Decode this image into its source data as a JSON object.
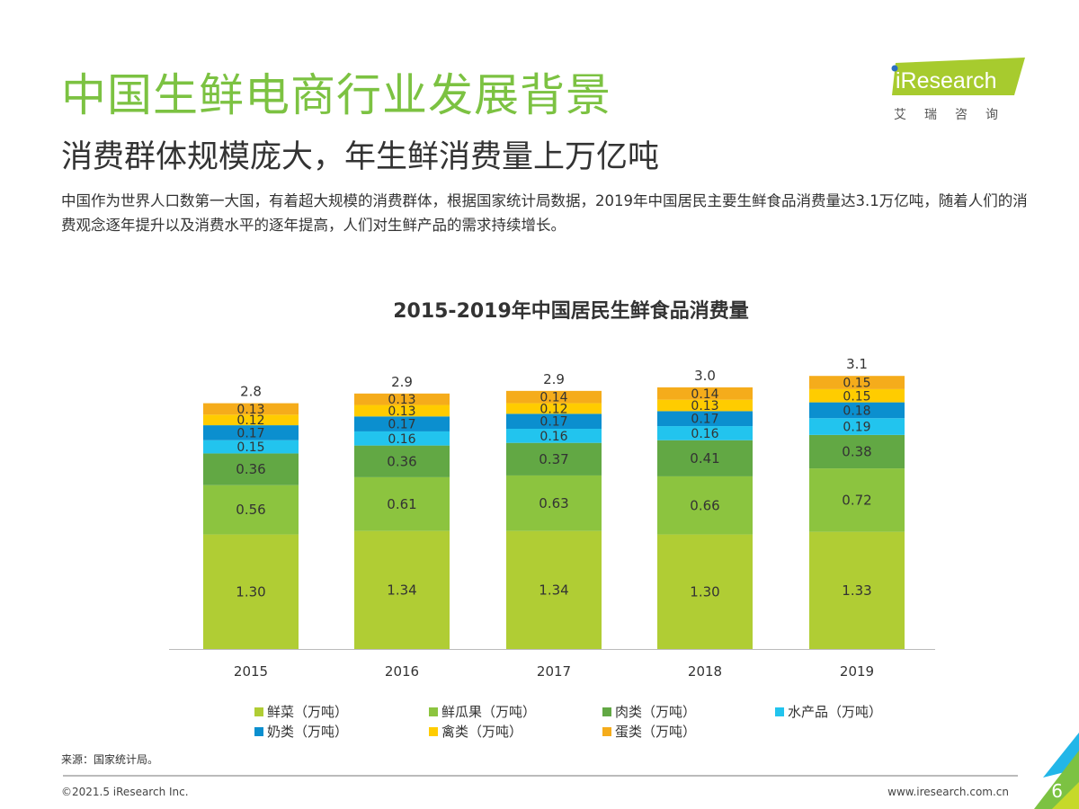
{
  "header": {
    "title": "中国生鲜电商行业发展背景",
    "subtitle": "消费群体规模庞大，年生鲜消费量上万亿吨",
    "body": "中国作为世界人口数第一大国，有着超大规模的消费群体，根据国家统计局数据，2019年中国居民主要生鲜食品消费量达3.1万亿吨，随着人们的消费观念逐年提升以及消费水平的逐年提高，人们对生鲜产品的需求持续增长。"
  },
  "logo": {
    "text": "iResearch",
    "cn": "艾 瑞 咨 询"
  },
  "chart_data": {
    "type": "bar",
    "stacked": true,
    "title": "2015-2019年中国居民生鲜食品消费量",
    "categories": [
      "2015",
      "2016",
      "2017",
      "2018",
      "2019"
    ],
    "totals": [
      "2.8",
      "2.9",
      "2.9",
      "3.0",
      "3.1"
    ],
    "series": [
      {
        "name": "鲜菜（万吨）",
        "color": "#b0cd34",
        "values": [
          1.3,
          1.34,
          1.34,
          1.3,
          1.33
        ]
      },
      {
        "name": "鲜瓜果（万吨）",
        "color": "#8cc43f",
        "values": [
          0.56,
          0.61,
          0.63,
          0.66,
          0.72
        ]
      },
      {
        "name": "肉类（万吨）",
        "color": "#62a844",
        "values": [
          0.36,
          0.36,
          0.37,
          0.41,
          0.38
        ]
      },
      {
        "name": "水产品（万吨）",
        "color": "#22c4ee",
        "values": [
          0.15,
          0.16,
          0.16,
          0.16,
          0.19
        ]
      },
      {
        "name": "奶类（万吨）",
        "color": "#0b8fcf",
        "values": [
          0.17,
          0.17,
          0.17,
          0.17,
          0.18
        ]
      },
      {
        "name": "禽类（万吨）",
        "color": "#ffcc00",
        "values": [
          0.12,
          0.13,
          0.12,
          0.13,
          0.15
        ]
      },
      {
        "name": "蛋类（万吨）",
        "color": "#f5ac1b",
        "values": [
          0.13,
          0.13,
          0.14,
          0.14,
          0.15
        ]
      }
    ],
    "legend": "bottom"
  },
  "footer": {
    "source": "来源：国家统计局。",
    "copyright": "©2021.5 iResearch Inc.",
    "url": "www.iresearch.com.cn",
    "page": "6"
  }
}
